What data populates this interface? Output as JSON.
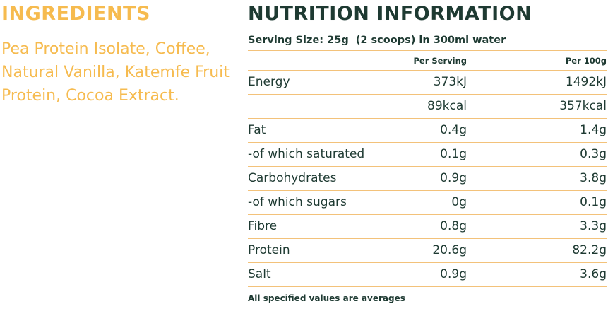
{
  "ingredients": {
    "title": "INGREDIENTS",
    "text": "Pea Protein Isolate, Coffee, Natural Vanilla, Katemfe Fruit Protein, Cocoa Extract.",
    "color": "#f6bb4f"
  },
  "nutrition": {
    "title": "NUTRITION INFORMATION",
    "serving": "Serving Size: 25g  (2 scoops) in 300ml water",
    "headers": {
      "per_serving": "Per Serving",
      "per_100g": "Per 100g"
    },
    "rows": [
      {
        "label": "Energy",
        "per_serving": "373kJ",
        "per_100g": "1492kJ"
      },
      {
        "label": "",
        "per_serving": "89kcal",
        "per_100g": "357kcal"
      },
      {
        "label": "Fat",
        "per_serving": "0.4g",
        "per_100g": "1.4g"
      },
      {
        "label": "-of which saturated",
        "per_serving": "0.1g",
        "per_100g": "0.3g"
      },
      {
        "label": "Carbohydrates",
        "per_serving": "0.9g",
        "per_100g": "3.8g"
      },
      {
        "label": "-of which sugars",
        "per_serving": "0g",
        "per_100g": "0.1g"
      },
      {
        "label": "Fibre",
        "per_serving": "0.8g",
        "per_100g": "3.3g"
      },
      {
        "label": "Protein",
        "per_serving": "20.6g",
        "per_100g": "82.2g"
      },
      {
        "label": "Salt",
        "per_serving": "0.9g",
        "per_100g": "3.6g"
      }
    ],
    "footnote": "All specified values are averages",
    "text_color": "#1e3a32",
    "rule_color": "#f3c27a"
  }
}
